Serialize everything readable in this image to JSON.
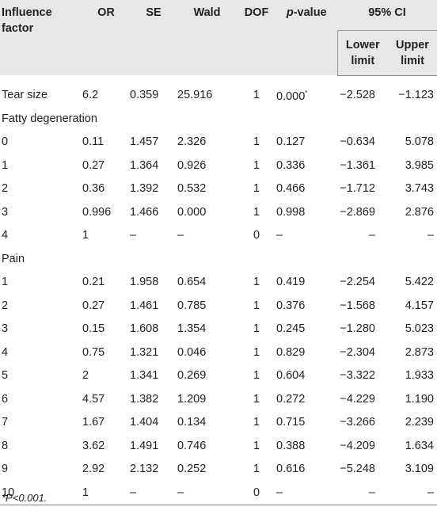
{
  "headers": {
    "factor": "Influence factor",
    "or": "OR",
    "se": "SE",
    "wald": "Wald",
    "dof": "DOF",
    "p_prefix": "p",
    "p_suffix": "-value",
    "ci": "95% CI",
    "lower": "Lower limit",
    "upper": "Upper limit"
  },
  "tear_row": {
    "label": "Tear size",
    "or": "6.2",
    "se": "0.359",
    "wald": "25.916",
    "dof": "1",
    "p": "0.000",
    "p_mark": "*",
    "lower": "−2.528",
    "upper": "−1.123"
  },
  "sections": [
    {
      "title": "Fatty degeneration",
      "rows": [
        {
          "label": "0",
          "or": "0.11",
          "se": "1.457",
          "wald": "2.326",
          "dof": "1",
          "p": "0.127",
          "lower": "−0.634",
          "upper": "5.078"
        },
        {
          "label": "1",
          "or": "0.27",
          "se": "1.364",
          "wald": "0.926",
          "dof": "1",
          "p": "0.336",
          "lower": "−1.361",
          "upper": "3.985"
        },
        {
          "label": "2",
          "or": "0.36",
          "se": "1.392",
          "wald": "0.532",
          "dof": "1",
          "p": "0.466",
          "lower": "−1.712",
          "upper": "3.743"
        },
        {
          "label": "3",
          "or": "0.996",
          "se": "1.466",
          "wald": "0.000",
          "dof": "1",
          "p": "0.998",
          "lower": "−2.869",
          "upper": "2.876"
        },
        {
          "label": "4",
          "or": "1",
          "se": "–",
          "wald": "–",
          "dof": "0",
          "p": "–",
          "lower": "–",
          "upper": "–"
        }
      ]
    },
    {
      "title": "Pain",
      "rows": [
        {
          "label": "1",
          "or": "0.21",
          "se": "1.958",
          "wald": "0.654",
          "dof": "1",
          "p": "0.419",
          "lower": "−2.254",
          "upper": "5.422"
        },
        {
          "label": "2",
          "or": "0.27",
          "se": "1.461",
          "wald": "0.785",
          "dof": "1",
          "p": "0.376",
          "lower": "−1.568",
          "upper": "4.157"
        },
        {
          "label": "3",
          "or": "0.15",
          "se": "1.608",
          "wald": "1.354",
          "dof": "1",
          "p": "0.245",
          "lower": "−1.280",
          "upper": "5.023"
        },
        {
          "label": "4",
          "or": "0.75",
          "se": "1.321",
          "wald": "0.046",
          "dof": "1",
          "p": "0.829",
          "lower": "−2.304",
          "upper": "2.873"
        },
        {
          "label": "5",
          "or": "2",
          "se": "1.341",
          "wald": "0.269",
          "dof": "1",
          "p": "0.604",
          "lower": "−3.322",
          "upper": "1.933"
        },
        {
          "label": "6",
          "or": "4.57",
          "se": "1.382",
          "wald": "1.209",
          "dof": "1",
          "p": "0.272",
          "lower": "−4.229",
          "upper": "1.190"
        },
        {
          "label": "7",
          "or": "1.67",
          "se": "1.404",
          "wald": "0.134",
          "dof": "1",
          "p": "0.715",
          "lower": "−3.266",
          "upper": "2.239"
        },
        {
          "label": "8",
          "or": "3.62",
          "se": "1.491",
          "wald": "0.746",
          "dof": "1",
          "p": "0.388",
          "lower": "−4.209",
          "upper": "1.634"
        },
        {
          "label": "9",
          "or": "2.92",
          "se": "2.132",
          "wald": "0.252",
          "dof": "1",
          "p": "0.616",
          "lower": "−5.248",
          "upper": "3.109"
        },
        {
          "label": "10",
          "or": "1",
          "se": "–",
          "wald": "–",
          "dof": "0",
          "p": "–",
          "lower": "–",
          "upper": "–"
        }
      ]
    }
  ],
  "footnote": "*P<0.001."
}
